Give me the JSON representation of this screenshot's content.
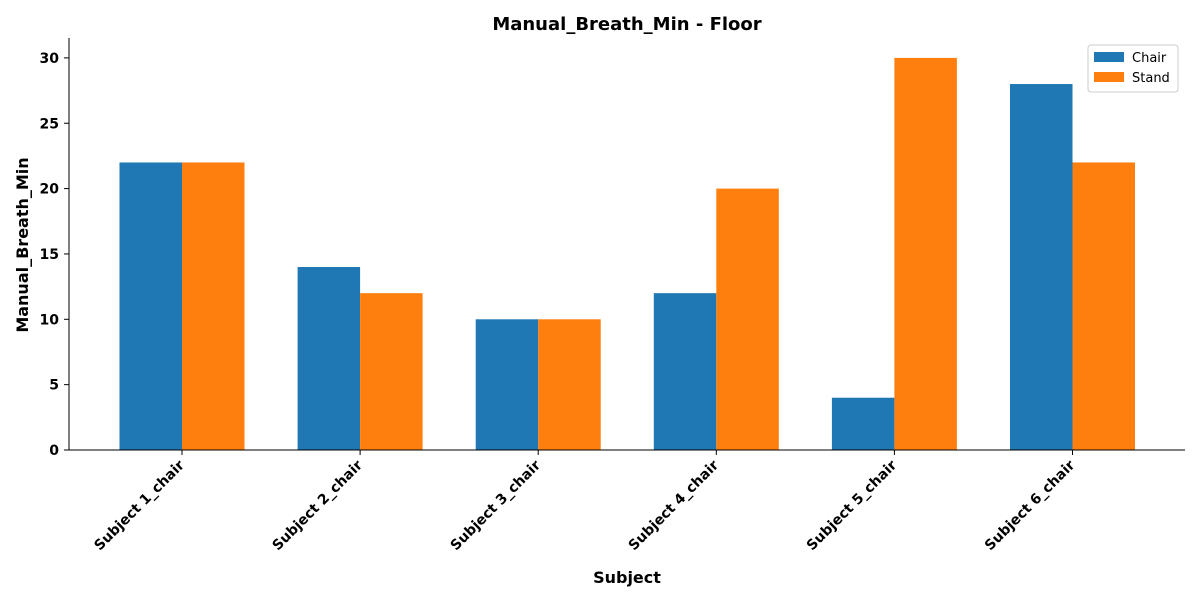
{
  "chart_data": {
    "type": "bar",
    "title": "Manual_Breath_Min - Floor",
    "xlabel": "Subject",
    "ylabel": "Manual_Breath_Min",
    "categories": [
      "Subject 1_chair",
      "Subject 2_chair",
      "Subject 3_chair",
      "Subject 4_chair",
      "Subject 5_chair",
      "Subject 6_chair"
    ],
    "series": [
      {
        "name": "Chair",
        "color": "#1f77b4",
        "values": [
          22,
          14,
          10,
          12,
          4,
          28
        ]
      },
      {
        "name": "Stand",
        "color": "#ff7f0e",
        "values": [
          22,
          12,
          10,
          20,
          30,
          22
        ]
      }
    ],
    "ylim": [
      0,
      31.5
    ],
    "yticks": [
      0,
      5,
      10,
      15,
      20,
      25,
      30
    ],
    "grid": false,
    "legend_position": "top-right"
  }
}
